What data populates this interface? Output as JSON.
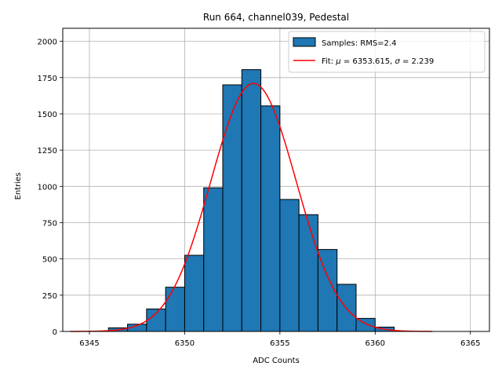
{
  "chart_data": {
    "type": "bar",
    "title": "Run 664, channel039, Pedestal",
    "xlabel": "ADC Counts",
    "ylabel": "Entries",
    "xlim": [
      6343.6,
      6366.0
    ],
    "ylim": [
      0,
      2090
    ],
    "xticks": [
      6345,
      6350,
      6355,
      6360,
      6365
    ],
    "yticks": [
      0,
      250,
      500,
      750,
      1000,
      1250,
      1500,
      1750,
      2000
    ],
    "grid": true,
    "legend_position": "top-right",
    "histogram": {
      "name": "Samples: RMS=2.4",
      "color": "#1f77b4",
      "bin_width": 1,
      "bin_starts": [
        6346,
        6347,
        6348,
        6349,
        6350,
        6351,
        6352,
        6353,
        6354,
        6355,
        6356,
        6357,
        6358,
        6359,
        6360
      ],
      "values": [
        25,
        50,
        155,
        305,
        525,
        990,
        1700,
        1805,
        1555,
        910,
        805,
        565,
        325,
        90,
        30
      ]
    },
    "fit": {
      "name_prefix": "Fit: ",
      "name_parts": [
        "μ",
        " = 6353.615, ",
        "σ",
        " = 2.239"
      ],
      "color": "#ff0000",
      "mu": 6353.615,
      "sigma": 2.239,
      "amplitude": 1710,
      "x_range": [
        6344,
        6363
      ]
    }
  }
}
